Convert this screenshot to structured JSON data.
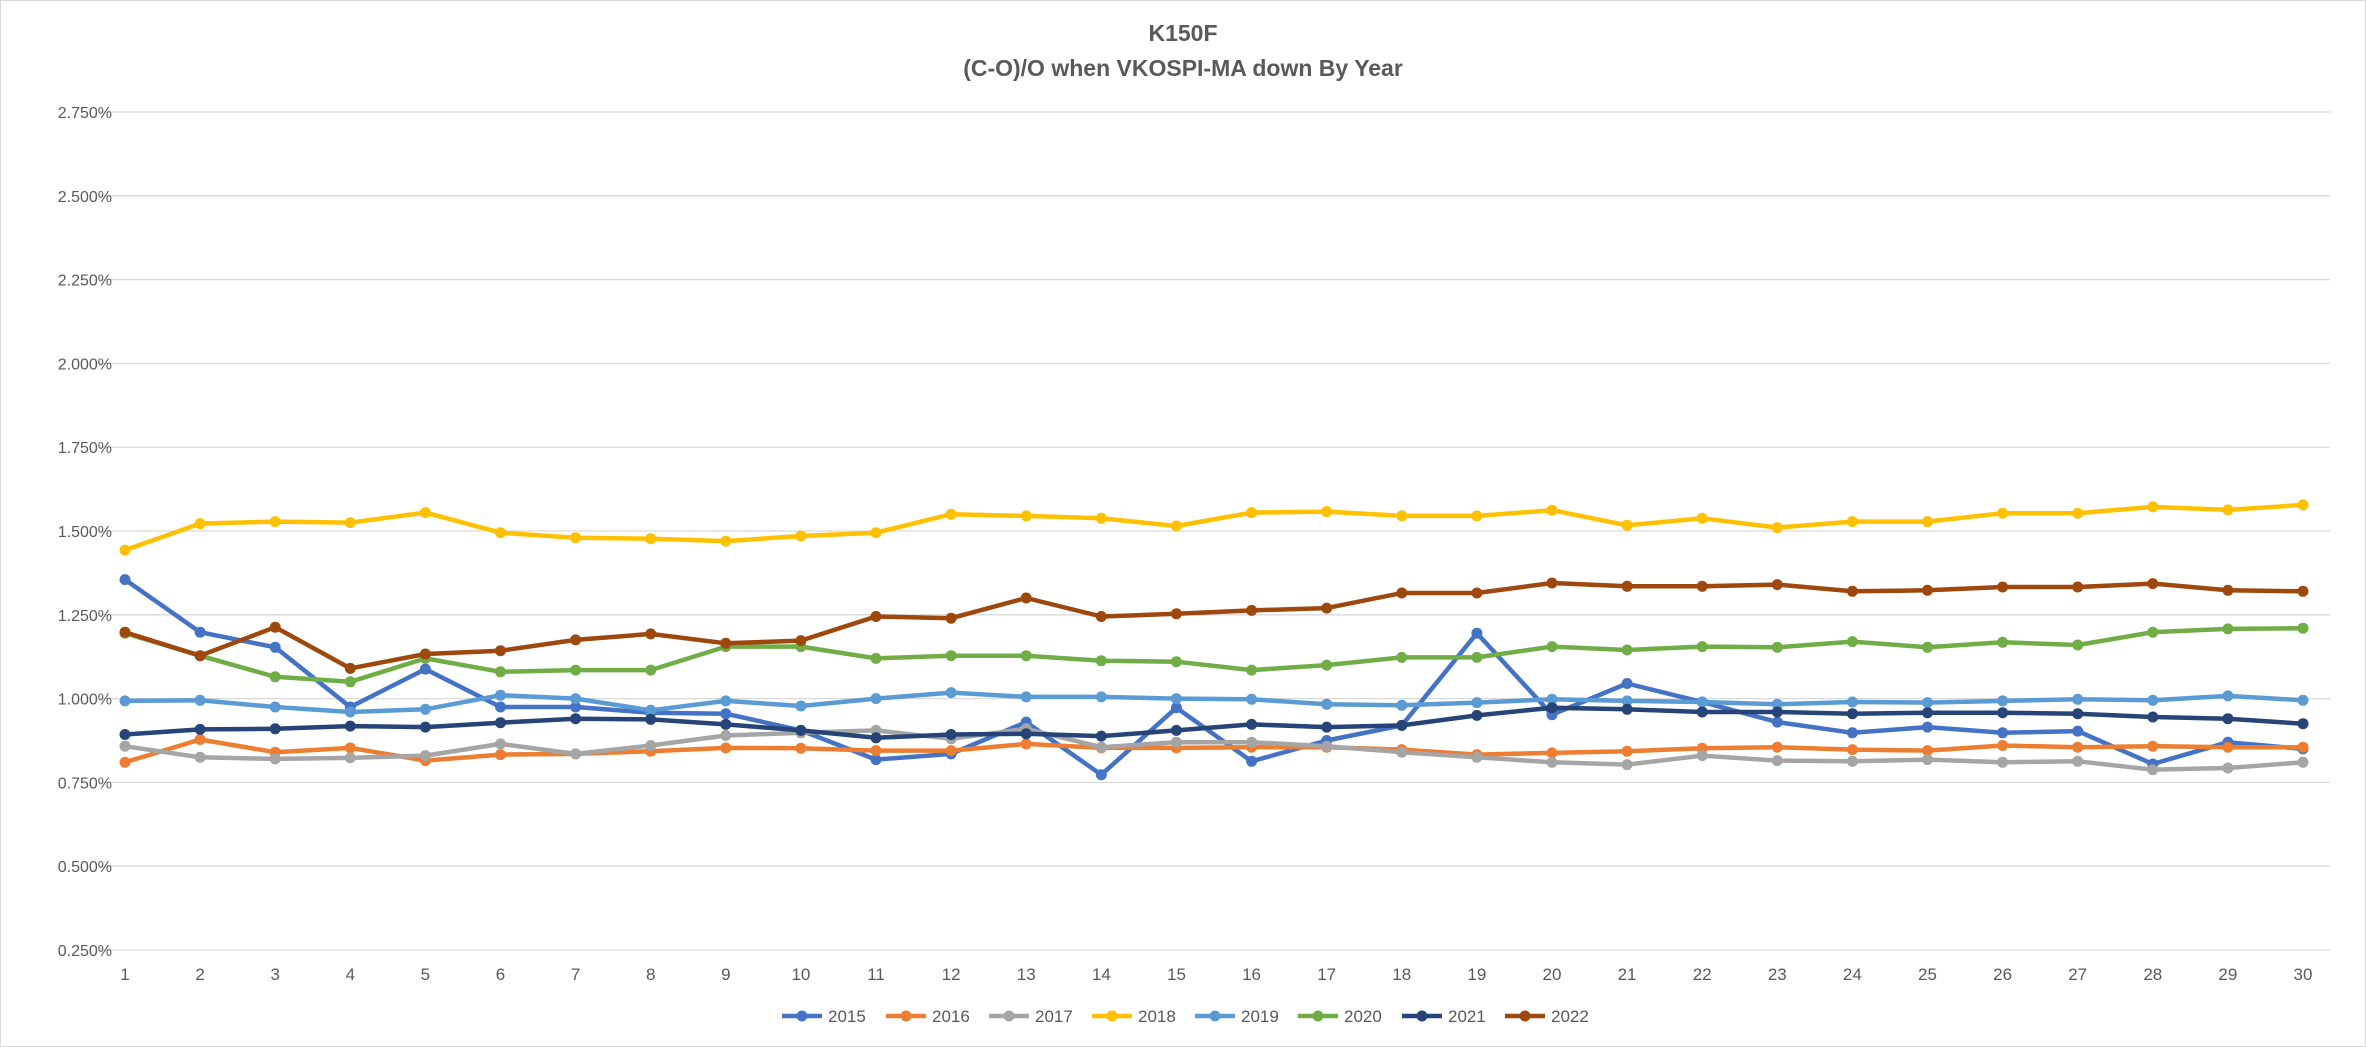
{
  "chart_data": {
    "type": "line",
    "title": "K150F",
    "subtitle": "(C-O)/O when VKOSPI-MA down By Year",
    "xlabel": "",
    "ylabel": "",
    "x": [
      1,
      2,
      3,
      4,
      5,
      6,
      7,
      8,
      9,
      10,
      11,
      12,
      13,
      14,
      15,
      16,
      17,
      18,
      19,
      20,
      21,
      22,
      23,
      24,
      25,
      26,
      27,
      28,
      29,
      30
    ],
    "ylim": [
      0.25,
      2.75
    ],
    "y_unit": "%",
    "y_ticks": [
      "0.250%",
      "0.500%",
      "0.750%",
      "1.000%",
      "1.250%",
      "1.500%",
      "1.750%",
      "2.000%",
      "2.250%",
      "2.500%",
      "2.750%"
    ],
    "grid": true,
    "legend_position": "bottom",
    "series": [
      {
        "name": "2015",
        "color": "#4472C4",
        "values": [
          1.355,
          1.198,
          1.153,
          0.975,
          1.088,
          0.975,
          0.975,
          0.958,
          0.955,
          0.905,
          0.818,
          0.835,
          0.93,
          0.773,
          0.973,
          0.813,
          0.875,
          0.92,
          1.195,
          0.952,
          1.045,
          0.99,
          0.93,
          0.898,
          0.915,
          0.898,
          0.903,
          0.805,
          0.87,
          0.85
        ]
      },
      {
        "name": "2016",
        "color": "#ED7D31",
        "values": [
          0.81,
          0.878,
          0.84,
          0.853,
          0.815,
          0.833,
          0.835,
          0.843,
          0.853,
          0.852,
          0.845,
          0.845,
          0.865,
          0.853,
          0.853,
          0.855,
          0.855,
          0.848,
          0.833,
          0.838,
          0.843,
          0.852,
          0.855,
          0.848,
          0.845,
          0.86,
          0.855,
          0.858,
          0.855,
          0.855
        ]
      },
      {
        "name": "2017",
        "color": "#A5A5A5",
        "values": [
          0.858,
          0.825,
          0.82,
          0.823,
          0.83,
          0.865,
          0.835,
          0.86,
          0.89,
          0.898,
          0.905,
          0.88,
          0.91,
          0.855,
          0.87,
          0.87,
          0.858,
          0.84,
          0.825,
          0.81,
          0.803,
          0.83,
          0.815,
          0.813,
          0.818,
          0.81,
          0.813,
          0.788,
          0.793,
          0.81
        ]
      },
      {
        "name": "2018",
        "color": "#FFC000",
        "values": [
          1.443,
          1.522,
          1.528,
          1.525,
          1.555,
          1.495,
          1.48,
          1.477,
          1.47,
          1.485,
          1.495,
          1.55,
          1.545,
          1.538,
          1.515,
          1.555,
          1.558,
          1.545,
          1.545,
          1.562,
          1.517,
          1.538,
          1.51,
          1.528,
          1.528,
          1.553,
          1.553,
          1.572,
          1.563,
          1.578
        ]
      },
      {
        "name": "2019",
        "color": "#5B9BD5",
        "values": [
          0.993,
          0.995,
          0.975,
          0.96,
          0.968,
          1.01,
          1.0,
          0.965,
          0.993,
          0.978,
          1.0,
          1.018,
          1.005,
          1.005,
          1.0,
          0.998,
          0.983,
          0.98,
          0.988,
          0.998,
          0.993,
          0.99,
          0.983,
          0.99,
          0.988,
          0.993,
          0.998,
          0.995,
          1.008,
          0.995
        ]
      },
      {
        "name": "2020",
        "color": "#70AD47",
        "values": [
          1.195,
          1.128,
          1.065,
          1.05,
          1.12,
          1.08,
          1.085,
          1.085,
          1.155,
          1.155,
          1.12,
          1.128,
          1.128,
          1.113,
          1.11,
          1.085,
          1.1,
          1.123,
          1.123,
          1.155,
          1.145,
          1.155,
          1.153,
          1.17,
          1.153,
          1.168,
          1.16,
          1.198,
          1.208,
          1.21
        ]
      },
      {
        "name": "2021",
        "color": "#264478",
        "values": [
          0.893,
          0.908,
          0.91,
          0.918,
          0.915,
          0.928,
          0.94,
          0.938,
          0.923,
          0.905,
          0.883,
          0.893,
          0.895,
          0.888,
          0.905,
          0.923,
          0.915,
          0.92,
          0.95,
          0.973,
          0.968,
          0.96,
          0.96,
          0.955,
          0.958,
          0.958,
          0.955,
          0.945,
          0.94,
          0.925
        ]
      },
      {
        "name": "2022",
        "color": "#9E480E",
        "values": [
          1.198,
          1.128,
          1.213,
          1.09,
          1.133,
          1.143,
          1.175,
          1.193,
          1.165,
          1.173,
          1.245,
          1.24,
          1.3,
          1.245,
          1.253,
          1.263,
          1.27,
          1.315,
          1.315,
          1.345,
          1.335,
          1.335,
          1.34,
          1.32,
          1.323,
          1.333,
          1.333,
          1.343,
          1.323,
          1.32
        ]
      }
    ]
  }
}
